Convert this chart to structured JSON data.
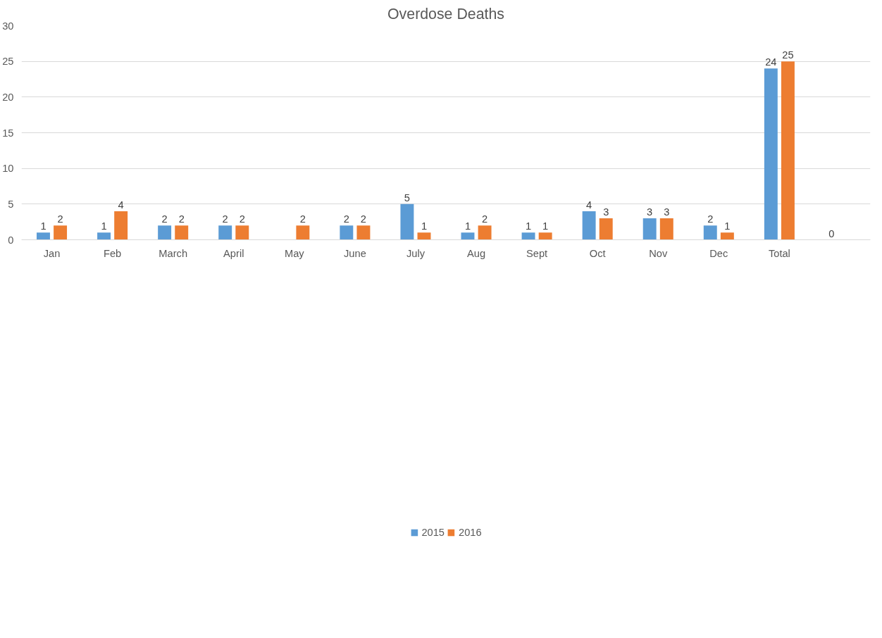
{
  "chart_data": {
    "type": "bar",
    "title": "Overdose Deaths",
    "categories": [
      "Jan",
      "Feb",
      "March",
      "April",
      "May",
      "June",
      "July",
      "Aug",
      "Sept",
      "Oct",
      "Nov",
      "Dec",
      "Total",
      null
    ],
    "series": [
      {
        "name": "2015",
        "color": "#5b9bd5",
        "values": [
          1,
          1,
          2,
          2,
          null,
          2,
          5,
          1,
          1,
          4,
          3,
          2,
          24,
          0
        ]
      },
      {
        "name": "2016",
        "color": "#ed7d31",
        "values": [
          2,
          4,
          2,
          2,
          2,
          2,
          1,
          2,
          1,
          3,
          3,
          1,
          25,
          null
        ]
      }
    ],
    "ylim": [
      0,
      30
    ],
    "yticks": [
      0,
      5,
      10,
      15,
      20,
      25,
      30
    ],
    "grid": "y",
    "legend": "bottom",
    "data_labels": true
  }
}
